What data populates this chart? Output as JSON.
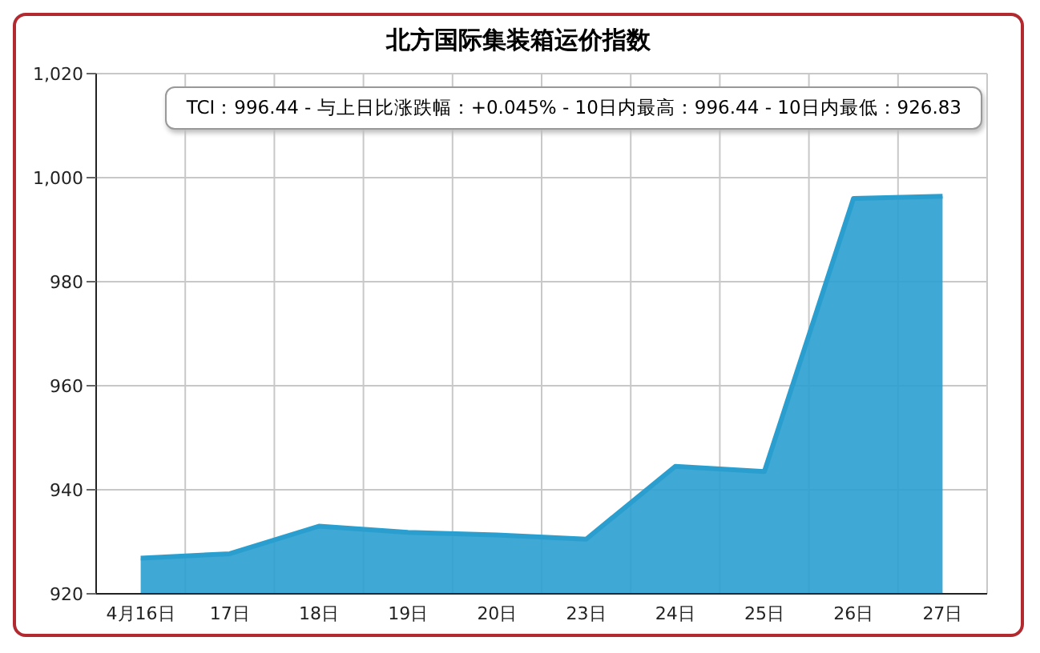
{
  "chart_data": {
    "type": "area",
    "title": "北方国际集装箱运价指数",
    "categories": [
      "4月16日",
      "17日",
      "18日",
      "19日",
      "20日",
      "23日",
      "24日",
      "25日",
      "26日",
      "27日"
    ],
    "series": [
      {
        "color": "#2a9fcf",
        "values": [
          926.83,
          927.7,
          933,
          931.8,
          931.3,
          930.5,
          944.5,
          943.5,
          996.0,
          996.44
        ]
      }
    ],
    "ylim": [
      920,
      1020
    ],
    "yticks": [
      920,
      940,
      960,
      980,
      {
        "value": 1000,
        "label": "1,000"
      },
      {
        "value": 1020,
        "label": "1,020"
      }
    ],
    "annotations": [
      "TCI：996.44 - 与上日比涨跌幅：+0.045% - 10日内最高：996.44 - 10日内最低：926.83"
    ],
    "grid": true
  }
}
